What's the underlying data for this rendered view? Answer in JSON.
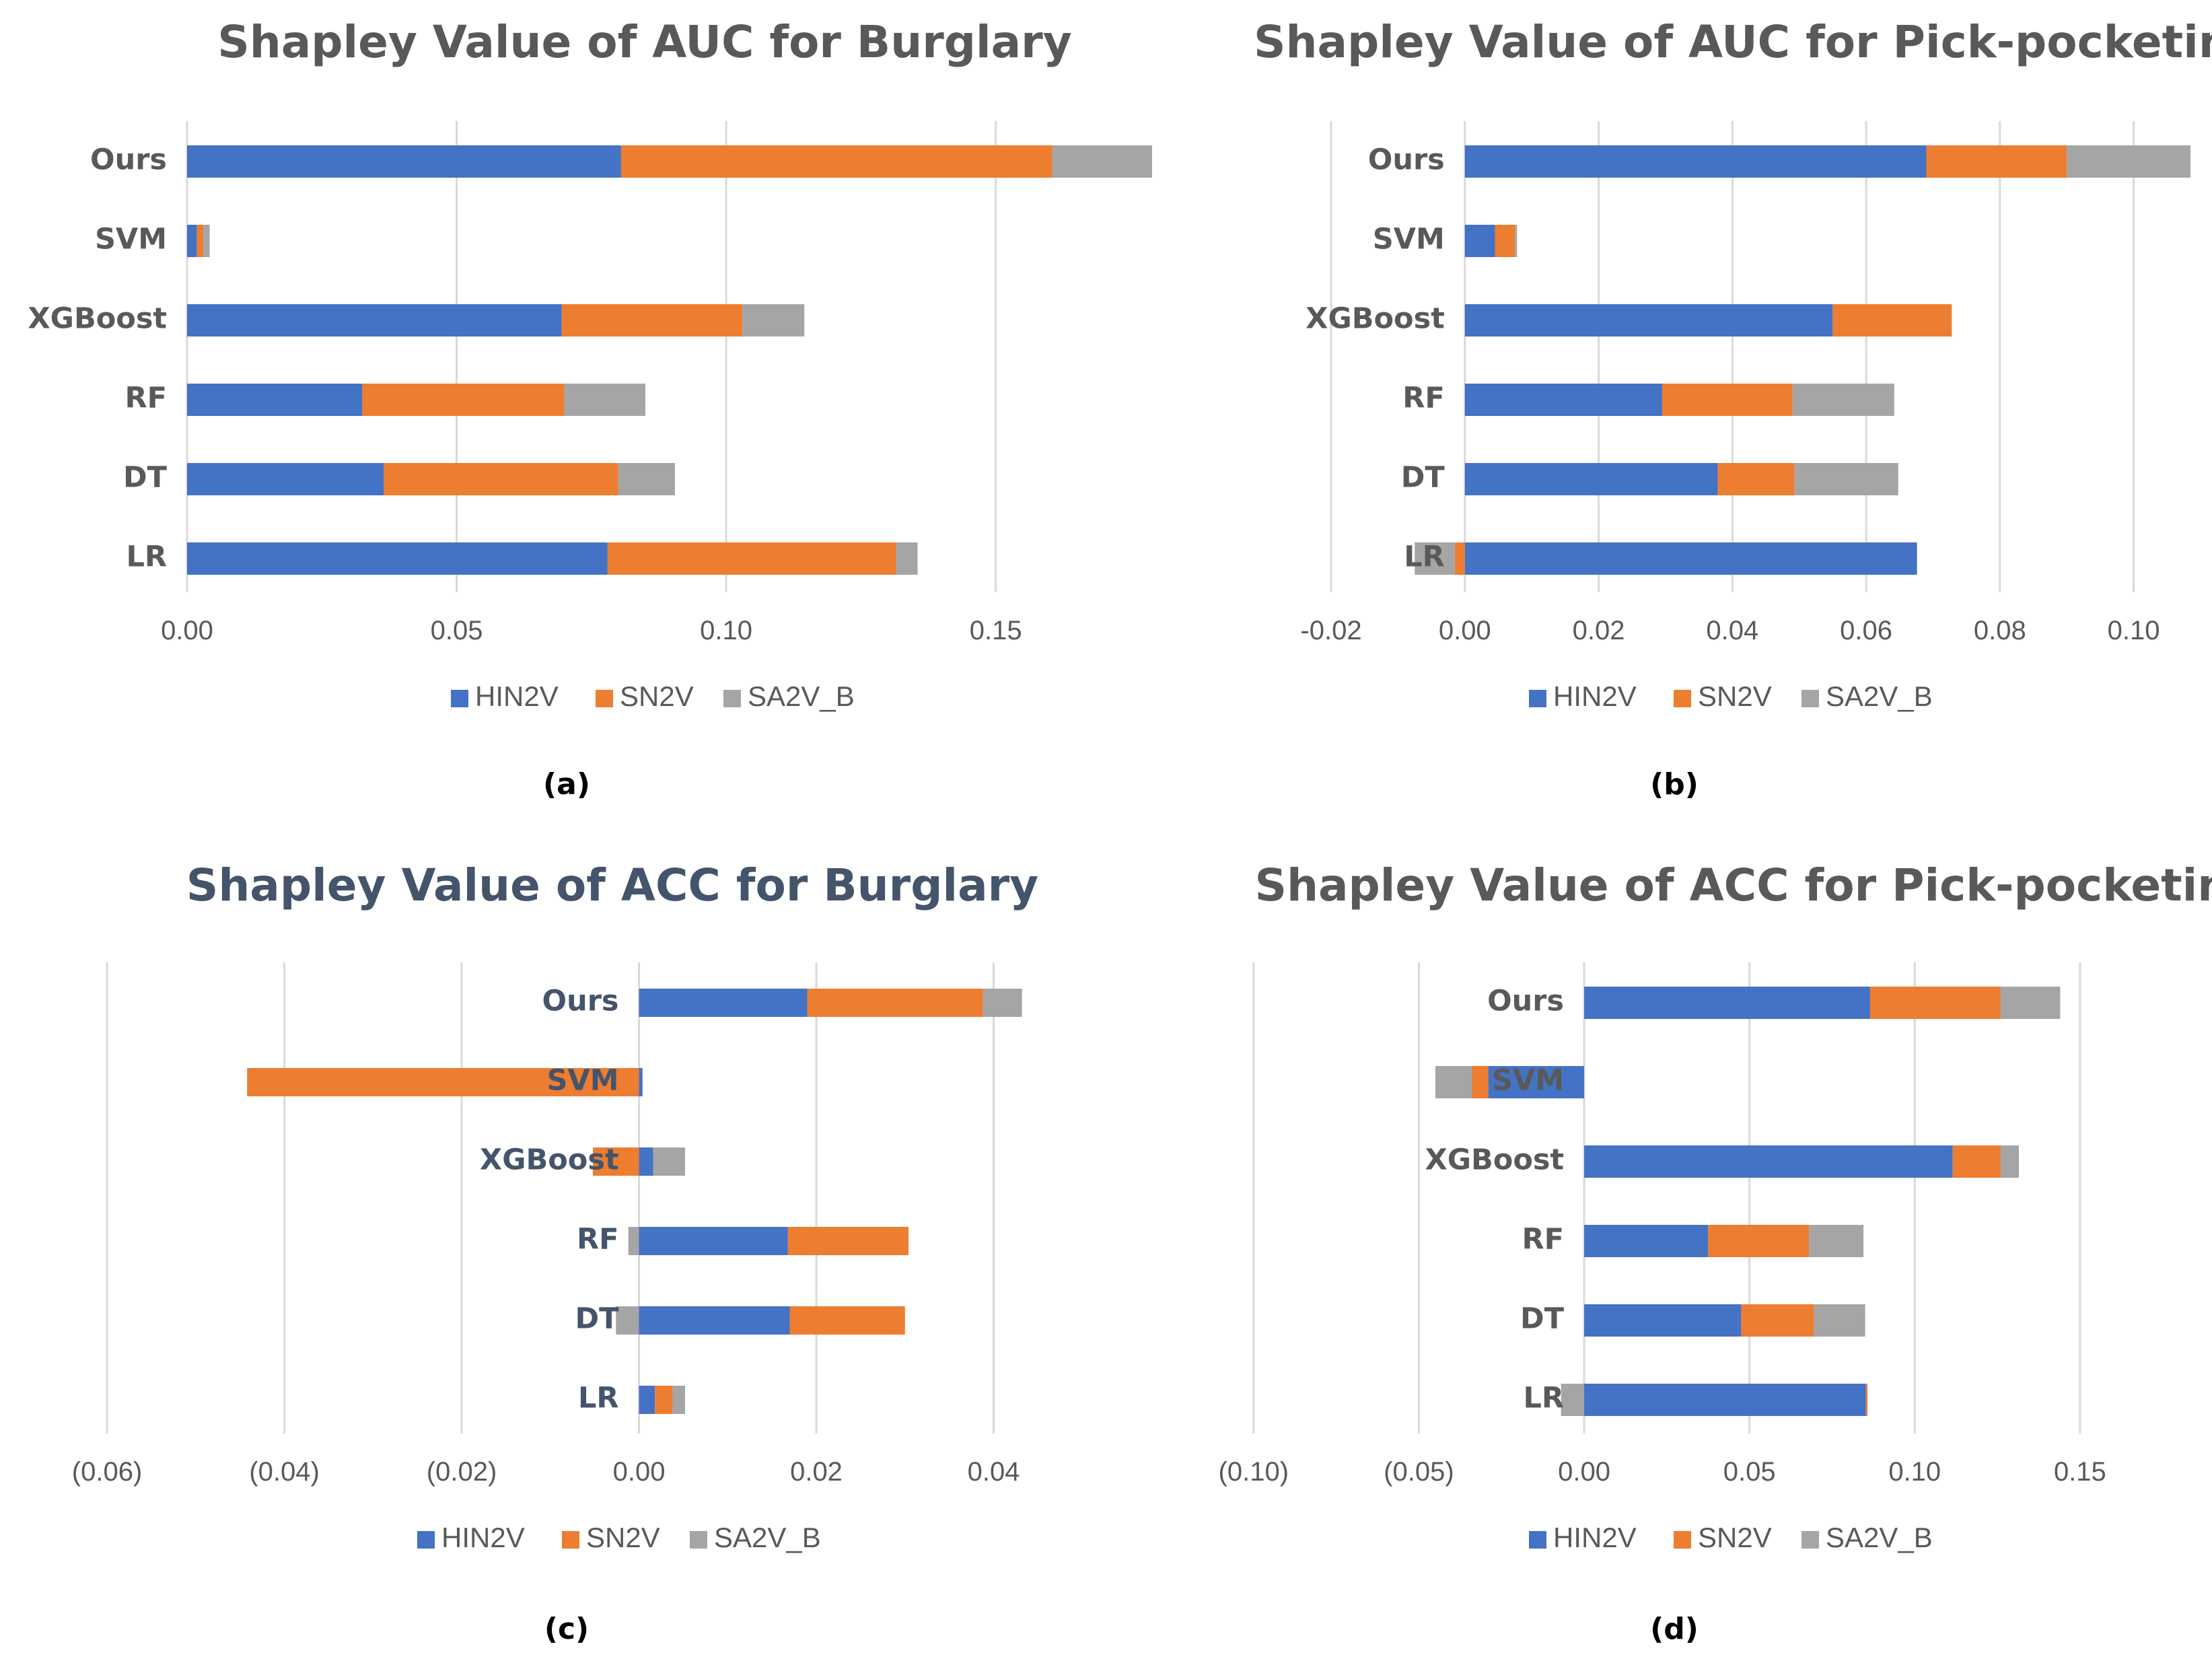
{
  "colors": {
    "HIN2V": "#4472C4",
    "SN2V": "#ED7D31",
    "SA2V_B": "#A5A5A5",
    "grid": "#D9D9D9",
    "negative_tick": "#FF0000",
    "tick": "#595959",
    "title_gray": "#595959",
    "title_blue": "#44546A",
    "category": "#595959",
    "category_blue": "#44546A"
  },
  "chart_data": [
    {
      "id": "a",
      "type": "bar",
      "stacked": true,
      "orientation": "horizontal",
      "title": "Shapley Value of AUC for Burglary",
      "caption": "(a)",
      "categories": [
        "Ours",
        "SVM",
        "XGBoost",
        "RF",
        "DT",
        "LR"
      ],
      "series": [
        {
          "name": "HIN2V",
          "values": [
            0.0805,
            0.0018,
            0.0695,
            0.0325,
            0.0365,
            0.078
          ]
        },
        {
          "name": "SN2V",
          "values": [
            0.08,
            0.0012,
            0.0335,
            0.0375,
            0.0435,
            0.0535
          ]
        },
        {
          "name": "SA2V_B",
          "values": [
            0.0185,
            0.0012,
            0.0115,
            0.015,
            0.0105,
            0.004
          ]
        }
      ],
      "xlim": [
        0.0,
        0.18
      ],
      "ticks": [
        0.0,
        0.05,
        0.1,
        0.15
      ],
      "tick_labels": [
        "0.00",
        "0.05",
        "0.10",
        "0.15"
      ],
      "legend": [
        "HIN2V",
        "SN2V",
        "SA2V_B"
      ],
      "legend_position": "bottom"
    },
    {
      "id": "b",
      "type": "bar",
      "stacked": true,
      "orientation": "horizontal",
      "title": "Shapley Value of AUC for Pick-pocketing",
      "caption": "(b)",
      "categories": [
        "Ours",
        "SVM",
        "XGBoost",
        "RF",
        "DT",
        "LR"
      ],
      "series": [
        {
          "name": "HIN2V",
          "values": [
            0.069,
            0.0045,
            0.055,
            0.0295,
            0.0378,
            0.0676
          ]
        },
        {
          "name": "SN2V",
          "values": [
            0.021,
            0.003,
            0.0178,
            0.0195,
            0.0115,
            -0.0015
          ]
        },
        {
          "name": "SA2V_B",
          "values": [
            0.0185,
            0.0003,
            0.0,
            0.0152,
            0.0155,
            -0.006
          ]
        }
      ],
      "xlim": [
        -0.02,
        0.11
      ],
      "ticks": [
        -0.02,
        0.0,
        0.02,
        0.04,
        0.06,
        0.08,
        0.1
      ],
      "tick_labels": [
        "-0.02",
        "0.00",
        "0.02",
        "0.04",
        "0.06",
        "0.08",
        "0.10"
      ],
      "legend": [
        "HIN2V",
        "SN2V",
        "SA2V_B"
      ],
      "legend_position": "bottom"
    },
    {
      "id": "c",
      "type": "bar",
      "stacked": true,
      "orientation": "horizontal",
      "title": "Shapley Value of ACC for Burglary",
      "caption": "(c)",
      "categories": [
        "Ours",
        "SVM",
        "XGBoost",
        "RF",
        "DT",
        "LR"
      ],
      "series": [
        {
          "name": "HIN2V",
          "values": [
            0.019,
            0.0004,
            0.0016,
            0.0168,
            0.017,
            0.0018
          ]
        },
        {
          "name": "SN2V",
          "values": [
            0.0198,
            -0.0442,
            -0.0052,
            0.0136,
            0.013,
            0.002
          ]
        },
        {
          "name": "SA2V_B",
          "values": [
            0.0044,
            0.0,
            0.0036,
            -0.0012,
            -0.0026,
            0.0014
          ]
        }
      ],
      "xlim": [
        -0.066,
        0.06
      ],
      "ticks": [
        -0.06,
        -0.04,
        -0.02,
        0.0,
        0.02,
        0.04
      ],
      "tick_labels": [
        "(0.06)",
        "(0.04)",
        "(0.02)",
        "0.00",
        "0.02",
        "0.04"
      ],
      "legend": [
        "HIN2V",
        "SN2V",
        "SA2V_B"
      ],
      "legend_position": "bottom"
    },
    {
      "id": "d",
      "type": "bar",
      "stacked": true,
      "orientation": "horizontal",
      "title": "Shapley Value of ACC for Pick-pocketing",
      "caption": "(d)",
      "categories": [
        "Ours",
        "SVM",
        "XGBoost",
        "RF",
        "DT",
        "LR"
      ],
      "series": [
        {
          "name": "HIN2V",
          "values": [
            0.0865,
            -0.029,
            0.1115,
            0.0375,
            0.0475,
            0.0852
          ]
        },
        {
          "name": "SN2V",
          "values": [
            0.0395,
            -0.005,
            0.0145,
            0.0305,
            0.022,
            0.0005
          ]
        },
        {
          "name": "SA2V_B",
          "values": [
            0.018,
            -0.011,
            0.0055,
            0.0165,
            0.0155,
            -0.007
          ]
        }
      ],
      "xlim": [
        -0.125,
        0.16
      ],
      "ticks": [
        -0.1,
        -0.05,
        0.0,
        0.05,
        0.1,
        0.15
      ],
      "tick_labels": [
        "(0.10)",
        "(0.05)",
        "0.00",
        "0.05",
        "0.10",
        "0.15"
      ],
      "legend": [
        "HIN2V",
        "SN2V",
        "SA2V_B"
      ],
      "legend_position": "bottom"
    }
  ]
}
